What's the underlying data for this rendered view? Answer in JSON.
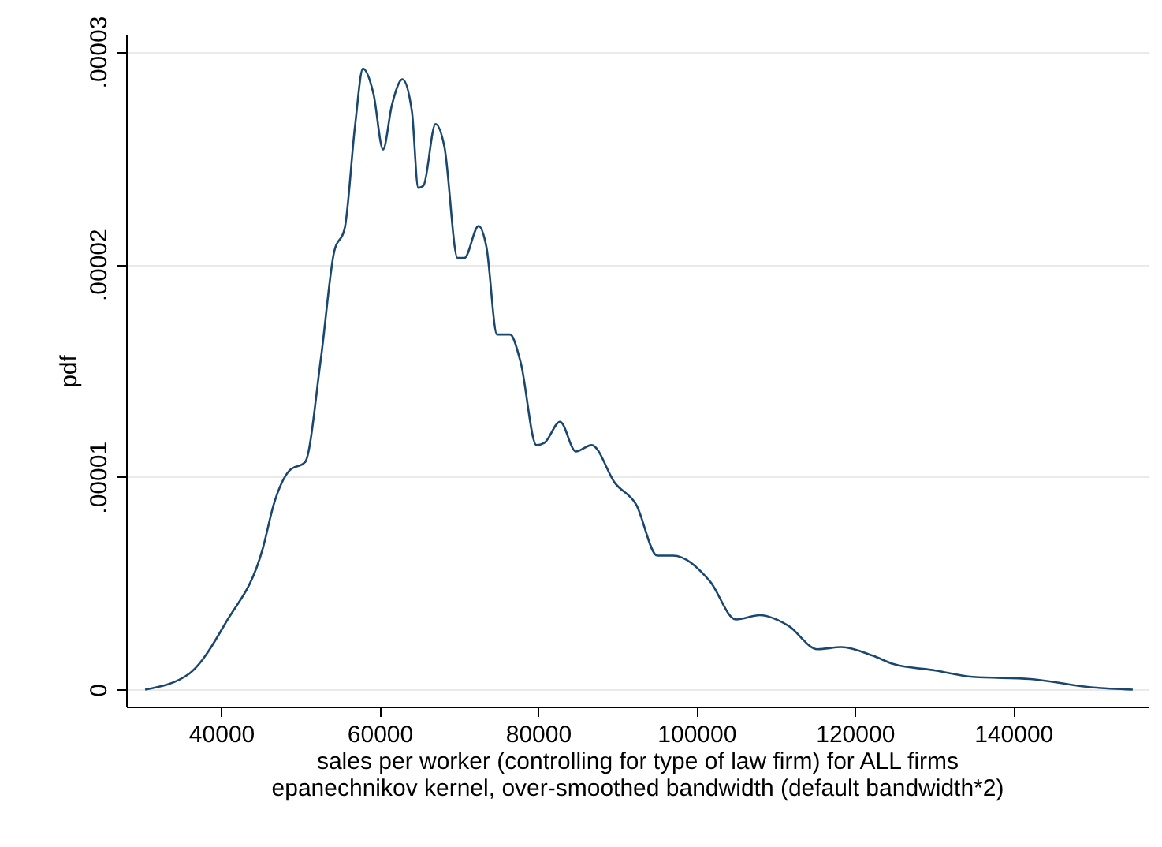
{
  "chart_data": {
    "type": "line",
    "xlabel": "sales per worker (controlling for type of law firm) for ALL firms",
    "annotations": [
      "epanechnikov kernel, over-smoothed bandwidth (default bandwidth*2)"
    ],
    "ylabel": "pdf",
    "grid": "y",
    "xlim": [
      28000,
      157000
    ],
    "xticks": [
      40000,
      60000,
      80000,
      100000,
      120000,
      140000
    ],
    "ylim": [
      -8e-07,
      3.08e-05
    ],
    "yticks": [
      0,
      {
        "value": 1e-05,
        "label": ".00001"
      },
      {
        "value": 2e-05,
        "label": ".00002"
      },
      {
        "value": 3e-05,
        "label": ".00003"
      }
    ],
    "series": [
      {
        "color": "#1a476f",
        "x": [
          30400,
          36000,
          40660,
          45300,
          46630,
          48620,
          50600,
          52600,
          54270,
          55600,
          56900,
          57900,
          59240,
          60440,
          61560,
          62890,
          64080,
          64880,
          65540,
          67060,
          68200,
          69850,
          70710,
          72500,
          73500,
          74830,
          76480,
          77810,
          79800,
          80800,
          82790,
          84780,
          86770,
          89750,
          92400,
          95060,
          97050,
          101700,
          105000,
          108000,
          111640,
          115300,
          118300,
          122250,
          124900,
          130200,
          134900,
          142150,
          150100,
          155100
        ],
        "values": [
          0,
          7.6e-07,
          3.2e-06,
          6.7e-06,
          8.7e-06,
          1.03e-05,
          1.07e-05,
          1.56e-05,
          2.06e-05,
          2.17e-05,
          2.65e-05,
          2.92e-05,
          2.8e-05,
          2.54e-05,
          2.75e-05,
          2.87e-05,
          2.72e-05,
          2.36e-05,
          2.37e-05,
          2.66e-05,
          2.55e-05,
          2.03e-05,
          2.03e-05,
          2.18e-05,
          2.08e-05,
          1.67e-05,
          1.67e-05,
          1.54e-05,
          1.15e-05,
          1.16e-05,
          1.26e-05,
          1.12e-05,
          1.15e-05,
          9.7e-06,
          8.7e-06,
          6.3e-06,
          6.3e-06,
          5.1e-06,
          3.3e-06,
          3.5e-06,
          3e-06,
          1.9e-06,
          2e-06,
          1.6e-06,
          1.2e-06,
          9e-07,
          6e-07,
          5e-07,
          1e-07,
          0
        ]
      }
    ]
  }
}
